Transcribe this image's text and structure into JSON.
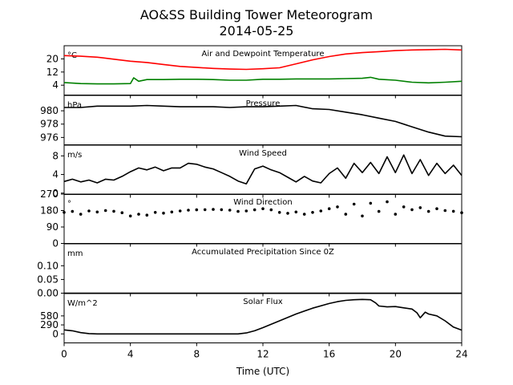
{
  "figure": {
    "title": "AO&SS Building Tower Meteorogram",
    "subtitle": "2014-05-25",
    "xlabel": "Time (UTC)"
  },
  "chart_data": [
    {
      "type": "line",
      "title": "Air and Dewpoint Temperature",
      "unit": "°C",
      "x_range": [
        0,
        24
      ],
      "x_ticks": [
        "0",
        "4",
        "8",
        "12",
        "16",
        "20",
        "24"
      ],
      "ylim": [
        -2,
        28
      ],
      "y_ticks": [
        "4",
        "12",
        "20"
      ],
      "series": [
        {
          "color": "#ff0000",
          "x": [
            0,
            1,
            2,
            3,
            4,
            5,
            6,
            7,
            8,
            9,
            10,
            11,
            12,
            13,
            14,
            15,
            16,
            17,
            18,
            19,
            20,
            21,
            22,
            23,
            24
          ],
          "values": [
            22,
            21.6,
            21,
            19.8,
            18.6,
            17.8,
            16.6,
            15.4,
            14.8,
            14.2,
            13.8,
            13.6,
            14,
            14.6,
            17,
            19.4,
            21.4,
            23,
            23.8,
            24.4,
            25,
            25.4,
            25.6,
            25.8,
            25.4
          ]
        },
        {
          "color": "#008000",
          "x": [
            0,
            1,
            2,
            3,
            4,
            4.2,
            4.5,
            5,
            6,
            7,
            8,
            9,
            10,
            11,
            12,
            13,
            14,
            15,
            16,
            17,
            18,
            18.5,
            19,
            20,
            21,
            22,
            23,
            24
          ],
          "values": [
            5.6,
            5,
            4.8,
            4.8,
            5,
            8.5,
            6.4,
            7.4,
            7.4,
            7.6,
            7.6,
            7.4,
            7,
            7,
            7.6,
            7.6,
            7.8,
            7.8,
            7.8,
            8,
            8.2,
            8.8,
            7.6,
            7,
            5.8,
            5.4,
            5.8,
            6.4
          ]
        }
      ]
    },
    {
      "type": "line",
      "title": "Pressure",
      "unit": "hPa",
      "x_range": [
        0,
        24
      ],
      "ylim": [
        974.9,
        982.3
      ],
      "y_ticks": [
        "976",
        "978",
        "980"
      ],
      "series": [
        {
          "color": "#000000",
          "x": [
            0,
            1,
            2,
            3,
            4,
            5,
            6,
            7,
            8,
            9,
            10,
            11,
            12,
            13,
            14,
            15,
            16,
            17,
            18,
            19,
            20,
            21,
            22,
            23,
            24
          ],
          "values": [
            980.5,
            980.5,
            980.7,
            980.7,
            980.7,
            980.8,
            980.7,
            980.6,
            980.6,
            980.6,
            980.5,
            980.6,
            980.6,
            980.7,
            980.8,
            980.3,
            980.2,
            979.8,
            979.4,
            978.9,
            978.4,
            977.6,
            976.8,
            976.2,
            976.1
          ]
        }
      ]
    },
    {
      "type": "line",
      "title": "Wind Speed",
      "unit": "m/s",
      "x_range": [
        0,
        24
      ],
      "ylim": [
        -0.3,
        10.3
      ],
      "y_ticks": [
        "0",
        "4",
        "8"
      ],
      "series": [
        {
          "color": "#000000",
          "x": [
            0,
            0.5,
            1,
            1.5,
            2,
            2.5,
            3,
            3.5,
            4,
            4.5,
            5,
            5.5,
            6,
            6.5,
            7,
            7.5,
            8,
            8.5,
            9,
            9.5,
            10,
            10.5,
            11,
            11.5,
            12,
            12.5,
            13,
            13.5,
            14,
            14.5,
            15,
            15.5,
            16,
            16.5,
            17,
            17.5,
            18,
            18.5,
            19,
            19.5,
            20,
            20.5,
            21,
            21.5,
            22,
            22.5,
            23,
            23.5,
            24
          ],
          "values": [
            2.5,
            3,
            2.4,
            2.8,
            2.2,
            3,
            2.8,
            3.6,
            4.6,
            5.4,
            5,
            5.6,
            4.8,
            5.4,
            5.4,
            6.4,
            6.2,
            5.6,
            5.2,
            4.4,
            3.6,
            2.6,
            2,
            5.2,
            5.8,
            5,
            4.4,
            3.4,
            2.4,
            3.6,
            2.6,
            2.2,
            4.2,
            5.4,
            3.2,
            6.4,
            4.4,
            6.6,
            4.2,
            7.8,
            4.4,
            8.2,
            4.2,
            7.2,
            3.8,
            6.4,
            4.2,
            6,
            3.8
          ]
        }
      ]
    },
    {
      "type": "scatter",
      "title": "Wind Direction",
      "unit": "°",
      "x_range": [
        0,
        24
      ],
      "ylim": [
        0,
        270
      ],
      "y_ticks": [
        "0",
        "90",
        "180",
        "270"
      ],
      "series": [
        {
          "color": "#000000",
          "x": [
            0,
            0.5,
            1,
            1.5,
            2,
            2.5,
            3,
            3.5,
            4,
            4.5,
            5,
            5.5,
            6,
            6.5,
            7,
            7.5,
            8,
            8.5,
            9,
            9.5,
            10,
            10.5,
            11,
            11.5,
            12,
            12.5,
            13,
            13.5,
            14,
            14.5,
            15,
            15.5,
            16,
            16.5,
            17,
            17.5,
            18,
            18.5,
            19,
            19.5,
            20,
            20.5,
            21,
            21.5,
            22,
            22.5,
            23,
            23.5,
            24
          ],
          "values": [
            170,
            175,
            160,
            178,
            172,
            180,
            176,
            168,
            150,
            160,
            155,
            170,
            166,
            172,
            178,
            182,
            184,
            185,
            186,
            185,
            182,
            175,
            178,
            184,
            190,
            184,
            170,
            165,
            172,
            160,
            170,
            178,
            190,
            200,
            160,
            215,
            150,
            220,
            175,
            228,
            160,
            200,
            185,
            196,
            175,
            190,
            180,
            176,
            168
          ]
        }
      ]
    },
    {
      "type": "line",
      "title": "Accumulated Precipitation Since 0Z",
      "unit": "mm",
      "x_range": [
        0,
        24
      ],
      "ylim": [
        0,
        0.18
      ],
      "y_ticks": [
        "0.00",
        "0.05",
        "0.10"
      ],
      "series": [
        {
          "color": "#000000",
          "x": [
            0,
            24
          ],
          "values": [
            0,
            0
          ]
        }
      ]
    },
    {
      "type": "line",
      "title": "Solar Flux",
      "unit": "W/m^2",
      "x_range": [
        0,
        24
      ],
      "ylim": [
        -290,
        1300
      ],
      "y_ticks": [
        "0",
        "290",
        "580"
      ],
      "series": [
        {
          "color": "#000000",
          "x": [
            0,
            0.5,
            1,
            1.5,
            2,
            4,
            6,
            8,
            10,
            10.5,
            11,
            11.5,
            12,
            13,
            14,
            15,
            16,
            16.5,
            17,
            17.5,
            18,
            18.5,
            18.8,
            19,
            19.5,
            20,
            20.5,
            21,
            21.3,
            21.5,
            21.8,
            22,
            22.5,
            23,
            23.5,
            24
          ],
          "values": [
            130,
            100,
            40,
            10,
            0,
            0,
            0,
            0,
            0,
            0,
            30,
            100,
            200,
            420,
            640,
            830,
            980,
            1040,
            1080,
            1100,
            1110,
            1100,
            1000,
            900,
            870,
            880,
            840,
            800,
            680,
            520,
            700,
            640,
            580,
            420,
            220,
            120
          ]
        }
      ]
    }
  ]
}
